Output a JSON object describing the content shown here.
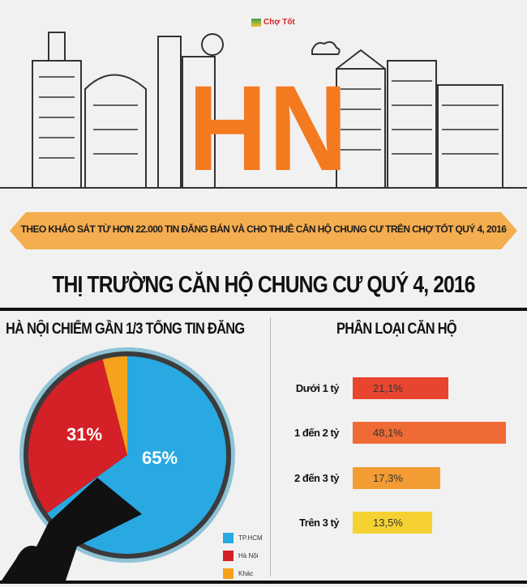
{
  "header": {
    "logo_text": "Chợ Tốt",
    "city_letters": "HN",
    "banner": "THEO KHẢO SÁT TỪ HƠN 22.000 TIN ĐĂNG BÁN VÀ CHO THUÊ CĂN HỘ CHUNG CƯ TRÊN CHỢ TỐT QUÝ 4, 2016",
    "title": "THỊ TRƯỜNG CĂN HỘ CHUNG CƯ QUÝ 4, 2016"
  },
  "colors": {
    "orange": "#f47a20",
    "tphcm": "#29a9e1",
    "hanoi": "#d42027",
    "khac": "#f7a21c"
  },
  "chart_data": [
    {
      "type": "pie",
      "title": "HÀ NỘI CHIẾM GẦN 1/3 TỔNG TIN ĐĂNG",
      "slices": [
        {
          "name": "TP.HCM",
          "value": 65,
          "label": "65%",
          "color": "#29a9e1"
        },
        {
          "name": "Hà Nội",
          "value": 31,
          "label": "31%",
          "color": "#d42027"
        },
        {
          "name": "Khác",
          "value": 4,
          "label": "",
          "color": "#f7a21c"
        }
      ],
      "legend": "bottom-right"
    },
    {
      "type": "bar",
      "orientation": "horizontal",
      "title": "PHÂN LOẠI CĂN HỘ",
      "categories": [
        "Dưới 1 tỷ",
        "1 đến 2 tỷ",
        "2 đến 3 tỷ",
        "Trên 3 tỷ"
      ],
      "values": [
        21.1,
        48.1,
        17.3,
        13.5
      ],
      "data_labels": [
        "21,1%",
        "48,1%",
        "17,3%",
        "13,5%"
      ],
      "colors": [
        "#e8452f",
        "#f06a35",
        "#f39c34",
        "#f5d232"
      ]
    }
  ]
}
